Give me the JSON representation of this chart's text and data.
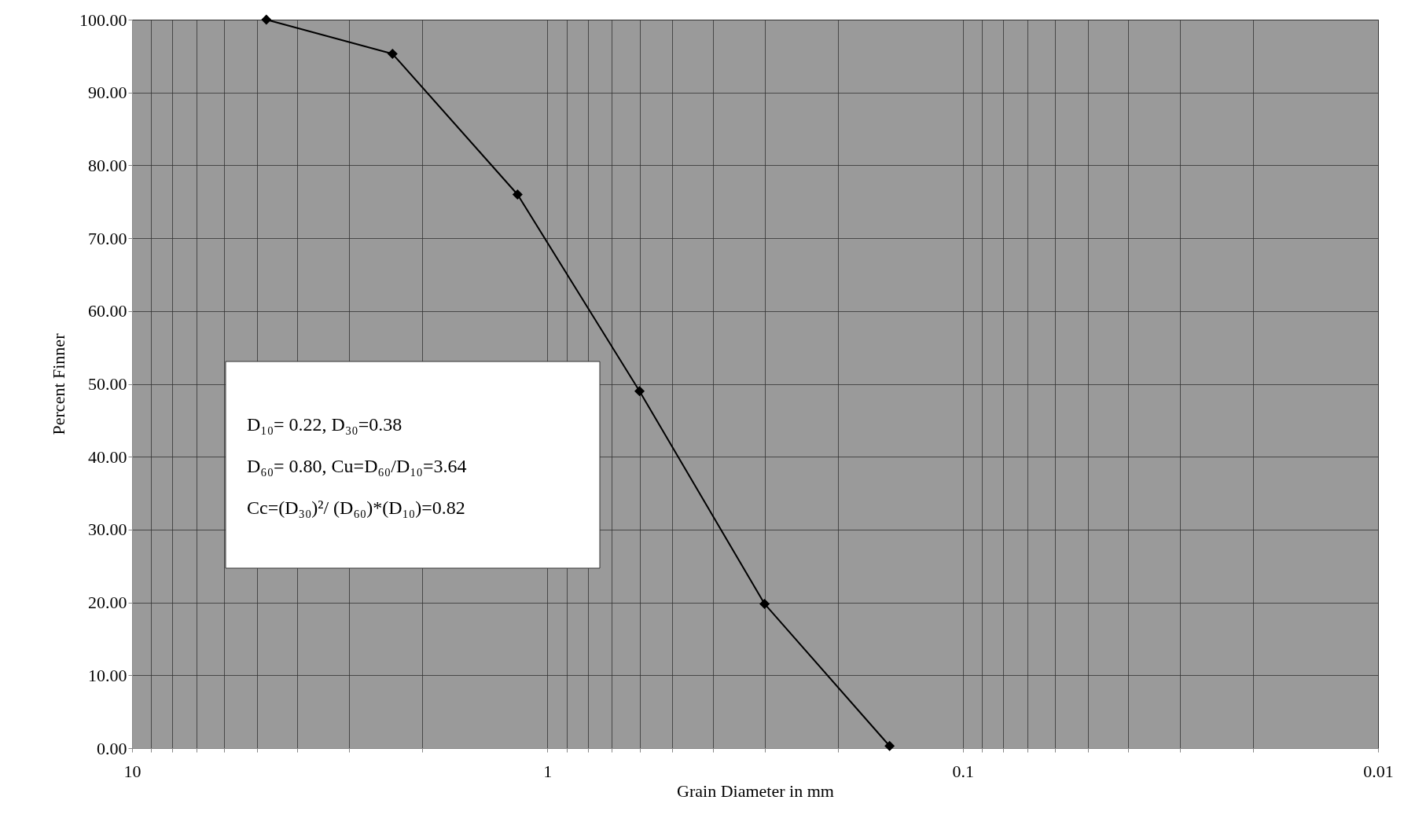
{
  "chart_data": {
    "type": "line",
    "xlabel": "Grain Diameter in mm",
    "ylabel": "Percent Finner",
    "x": [
      4.75,
      2.36,
      1.18,
      0.6,
      0.3,
      0.15
    ],
    "series": [
      {
        "color": "#000000",
        "values": [
          100,
          95.3,
          76.0,
          49.0,
          19.8,
          0.3
        ]
      }
    ],
    "log": "x",
    "xlim": [
      10,
      0.01
    ],
    "xticks": [
      10,
      {
        "value": 9,
        "label": null
      },
      {
        "value": 8,
        "label": null
      },
      {
        "value": 7,
        "label": null
      },
      {
        "value": 6,
        "label": null
      },
      {
        "value": 5,
        "label": null
      },
      {
        "value": 4,
        "label": null
      },
      {
        "value": 3,
        "label": null
      },
      {
        "value": 2,
        "label": null
      },
      1,
      {
        "value": 0.9,
        "label": null
      },
      {
        "value": 0.8,
        "label": null
      },
      {
        "value": 0.7,
        "label": null
      },
      {
        "value": 0.6,
        "label": null
      },
      {
        "value": 0.5,
        "label": null
      },
      {
        "value": 0.4,
        "label": null
      },
      {
        "value": 0.3,
        "label": null
      },
      {
        "value": 0.2,
        "label": null
      },
      0.1,
      {
        "value": 0.09,
        "label": null
      },
      {
        "value": 0.08,
        "label": null
      },
      {
        "value": 0.07,
        "label": null
      },
      {
        "value": 0.06,
        "label": null
      },
      {
        "value": 0.05,
        "label": null
      },
      {
        "value": 0.04,
        "label": null
      },
      {
        "value": 0.03,
        "label": null
      },
      {
        "value": 0.02,
        "label": null
      },
      0.01
    ],
    "ylim": [
      0,
      100
    ],
    "yticks": [
      {
        "value": 0,
        "label": "0.00"
      },
      {
        "value": 10,
        "label": "10.00"
      },
      {
        "value": 20,
        "label": "20.00"
      },
      {
        "value": 30,
        "label": "30.00"
      },
      {
        "value": 40,
        "label": "40.00"
      },
      {
        "value": 50,
        "label": "50.00"
      },
      {
        "value": 60,
        "label": "60.00"
      },
      {
        "value": 70,
        "label": "70.00"
      },
      {
        "value": 80,
        "label": "80.00"
      },
      {
        "value": 90,
        "label": "90.00"
      },
      {
        "value": 100,
        "label": "100.00"
      }
    ],
    "grid": true,
    "marker": "diamond",
    "line_style": "solid",
    "annotations": [
      "D₁₀= 0.22, D₃₀=0.38",
      "D₆₀= 0.80, Cu=D₆₀/D₁₀=3.64",
      "Cc=(D₃₀)²/ (D₆₀)*(D₁₀)=0.82"
    ]
  }
}
